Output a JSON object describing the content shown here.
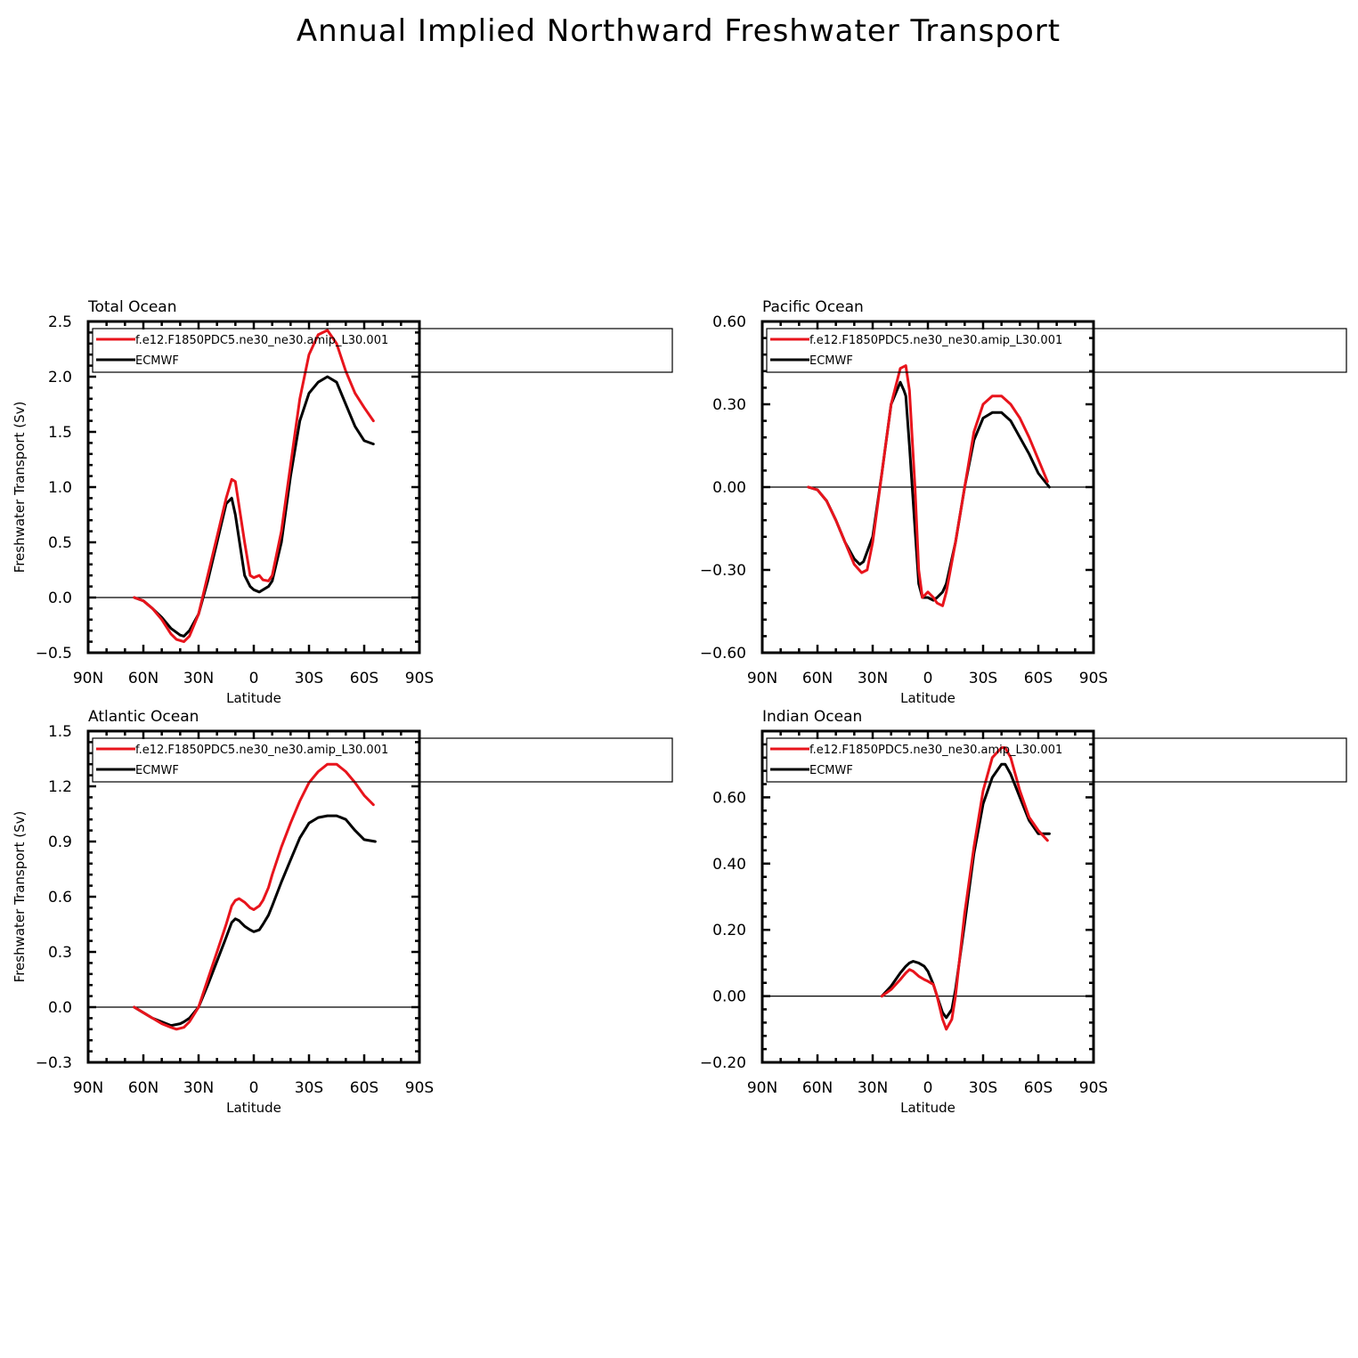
{
  "title": "Annual Implied Northward Freshwater Transport",
  "colors": {
    "model": "#e8141c",
    "obs": "#000000"
  },
  "chart_data": [
    {
      "type": "line",
      "panel_title": "Total Ocean",
      "xlabel": "Latitude",
      "ylabel": "Freshwater Transport (Sv)",
      "xlim": [
        -90,
        90
      ],
      "xticks": [
        -90,
        -60,
        -30,
        0,
        30,
        60,
        90
      ],
      "xtick_labels": [
        "90N",
        "60N",
        "30N",
        "0",
        "30S",
        "60S",
        "90S"
      ],
      "ylim": [
        -0.5,
        2.5
      ],
      "yticks": [
        -0.5,
        0,
        0.5,
        1,
        1.5,
        2,
        2.5
      ],
      "ytick_labels": [
        "−0.5",
        "0.0",
        "0.5",
        "1.0",
        "1.5",
        "2.0",
        "2.5"
      ],
      "zero_line": true,
      "series": [
        {
          "name": "f.e12.F1850PDC5.ne30_ne30.amip_L30.001",
          "color": "#e8141c",
          "x": [
            -65,
            -60,
            -55,
            -50,
            -45,
            -42,
            -38,
            -35,
            -30,
            -25,
            -20,
            -15,
            -12,
            -10,
            -5,
            -2,
            0,
            3,
            5,
            8,
            10,
            15,
            20,
            25,
            30,
            35,
            40,
            45,
            50,
            55,
            60,
            65
          ],
          "y": [
            0,
            -0.03,
            -0.1,
            -0.2,
            -0.33,
            -0.38,
            -0.4,
            -0.35,
            -0.15,
            0.2,
            0.55,
            0.9,
            1.07,
            1.05,
            0.5,
            0.2,
            0.18,
            0.2,
            0.16,
            0.15,
            0.2,
            0.6,
            1.2,
            1.8,
            2.2,
            2.38,
            2.42,
            2.3,
            2.05,
            1.85,
            1.72,
            1.6
          ]
        },
        {
          "name": "ECMWF",
          "color": "#000000",
          "x": [
            -65,
            -60,
            -55,
            -50,
            -45,
            -40,
            -38,
            -35,
            -30,
            -25,
            -20,
            -15,
            -12,
            -10,
            -5,
            -2,
            0,
            3,
            5,
            8,
            10,
            15,
            20,
            25,
            30,
            35,
            40,
            45,
            50,
            55,
            60,
            65
          ],
          "y": [
            0,
            -0.03,
            -0.1,
            -0.18,
            -0.28,
            -0.34,
            -0.35,
            -0.3,
            -0.15,
            0.15,
            0.5,
            0.85,
            0.9,
            0.75,
            0.2,
            0.1,
            0.07,
            0.05,
            0.07,
            0.1,
            0.15,
            0.5,
            1.1,
            1.6,
            1.85,
            1.95,
            2.0,
            1.95,
            1.75,
            1.55,
            1.42,
            1.39
          ]
        }
      ]
    },
    {
      "type": "line",
      "panel_title": "Pacific Ocean",
      "xlabel": "Latitude",
      "ylabel": "",
      "xlim": [
        -90,
        90
      ],
      "xticks": [
        -90,
        -60,
        -30,
        0,
        30,
        60,
        90
      ],
      "xtick_labels": [
        "90N",
        "60N",
        "30N",
        "0",
        "30S",
        "60S",
        "90S"
      ],
      "ylim": [
        -0.6,
        0.6
      ],
      "yticks": [
        -0.6,
        -0.3,
        0,
        0.3,
        0.6
      ],
      "ytick_labels": [
        "−0.60",
        "−0.30",
        "0.00",
        "0.30",
        "0.60"
      ],
      "zero_line": true,
      "series": [
        {
          "name": "f.e12.F1850PDC5.ne30_ne30.amip_L30.001",
          "color": "#e8141c",
          "x": [
            -65,
            -60,
            -55,
            -50,
            -45,
            -40,
            -36,
            -33,
            -30,
            -25,
            -20,
            -15,
            -12,
            -10,
            -7,
            -5,
            -3,
            0,
            3,
            5,
            8,
            10,
            15,
            20,
            25,
            30,
            35,
            40,
            45,
            50,
            55,
            60,
            65
          ],
          "y": [
            0,
            -0.01,
            -0.05,
            -0.12,
            -0.2,
            -0.28,
            -0.31,
            -0.3,
            -0.2,
            0.05,
            0.3,
            0.43,
            0.44,
            0.35,
            0.0,
            -0.3,
            -0.4,
            -0.38,
            -0.4,
            -0.42,
            -0.43,
            -0.38,
            -0.2,
            0.0,
            0.2,
            0.3,
            0.33,
            0.33,
            0.3,
            0.25,
            0.18,
            0.1,
            0.02
          ]
        },
        {
          "name": "ECMWF",
          "color": "#000000",
          "x": [
            -65,
            -60,
            -55,
            -50,
            -45,
            -40,
            -37,
            -35,
            -30,
            -25,
            -20,
            -15,
            -13,
            -12,
            -10,
            -7,
            -5,
            -3,
            0,
            3,
            5,
            8,
            10,
            15,
            20,
            25,
            30,
            35,
            40,
            45,
            50,
            55,
            60,
            66
          ],
          "y": [
            0,
            -0.01,
            -0.05,
            -0.12,
            -0.2,
            -0.26,
            -0.28,
            -0.27,
            -0.18,
            0.05,
            0.3,
            0.38,
            0.35,
            0.33,
            0.15,
            -0.15,
            -0.35,
            -0.4,
            -0.4,
            -0.41,
            -0.4,
            -0.38,
            -0.35,
            -0.2,
            0.0,
            0.17,
            0.25,
            0.27,
            0.27,
            0.24,
            0.18,
            0.12,
            0.05,
            0.0
          ]
        }
      ]
    },
    {
      "type": "line",
      "panel_title": "Atlantic Ocean",
      "xlabel": "Latitude",
      "ylabel": "Freshwater Transport (Sv)",
      "xlim": [
        -90,
        90
      ],
      "xticks": [
        -90,
        -60,
        -30,
        0,
        30,
        60,
        90
      ],
      "xtick_labels": [
        "90N",
        "60N",
        "30N",
        "0",
        "30S",
        "60S",
        "90S"
      ],
      "ylim": [
        -0.3,
        1.5
      ],
      "yticks": [
        -0.3,
        0,
        0.3,
        0.6,
        0.9,
        1.2,
        1.5
      ],
      "ytick_labels": [
        "−0.3",
        "0.0",
        "0.3",
        "0.6",
        "0.9",
        "1.2",
        "1.5"
      ],
      "zero_line": true,
      "series": [
        {
          "name": "f.e12.F1850PDC5.ne30_ne30.amip_L30.001",
          "color": "#e8141c",
          "x": [
            -65,
            -60,
            -55,
            -50,
            -45,
            -42,
            -38,
            -35,
            -30,
            -25,
            -20,
            -15,
            -12,
            -10,
            -8,
            -5,
            -2,
            0,
            3,
            5,
            8,
            10,
            15,
            20,
            25,
            30,
            35,
            40,
            45,
            50,
            55,
            60,
            65
          ],
          "y": [
            0,
            -0.03,
            -0.06,
            -0.09,
            -0.11,
            -0.12,
            -0.11,
            -0.08,
            0.0,
            0.15,
            0.3,
            0.45,
            0.55,
            0.58,
            0.59,
            0.57,
            0.54,
            0.53,
            0.55,
            0.58,
            0.65,
            0.72,
            0.87,
            1.0,
            1.12,
            1.22,
            1.28,
            1.32,
            1.32,
            1.28,
            1.22,
            1.15,
            1.1
          ]
        },
        {
          "name": "ECMWF",
          "color": "#000000",
          "x": [
            -65,
            -60,
            -55,
            -50,
            -45,
            -40,
            -38,
            -35,
            -30,
            -25,
            -20,
            -15,
            -12,
            -10,
            -8,
            -5,
            -2,
            0,
            3,
            5,
            8,
            10,
            15,
            20,
            25,
            30,
            35,
            40,
            45,
            50,
            55,
            60,
            66
          ],
          "y": [
            0,
            -0.03,
            -0.06,
            -0.08,
            -0.1,
            -0.09,
            -0.08,
            -0.06,
            0.0,
            0.12,
            0.25,
            0.38,
            0.46,
            0.48,
            0.47,
            0.44,
            0.42,
            0.41,
            0.42,
            0.45,
            0.5,
            0.55,
            0.68,
            0.8,
            0.92,
            1.0,
            1.03,
            1.04,
            1.04,
            1.02,
            0.96,
            0.91,
            0.9
          ]
        }
      ]
    },
    {
      "type": "line",
      "panel_title": "Indian Ocean",
      "xlabel": "Latitude",
      "ylabel": "",
      "xlim": [
        -90,
        90
      ],
      "xticks": [
        -90,
        -60,
        -30,
        0,
        30,
        60,
        90
      ],
      "xtick_labels": [
        "90N",
        "60N",
        "30N",
        "0",
        "30S",
        "60S",
        "90S"
      ],
      "ylim": [
        -0.2,
        0.8
      ],
      "yticks": [
        -0.2,
        0,
        0.2,
        0.4,
        0.6
      ],
      "ytick_labels": [
        "−0.20",
        "0.00",
        "0.20",
        "0.40",
        "0.60"
      ],
      "zero_line": true,
      "series": [
        {
          "name": "f.e12.F1850PDC5.ne30_ne30.amip_L30.001",
          "color": "#e8141c",
          "x": [
            -25,
            -20,
            -15,
            -12,
            -10,
            -8,
            -5,
            -2,
            0,
            3,
            5,
            8,
            10,
            13,
            15,
            20,
            25,
            30,
            35,
            40,
            42,
            45,
            50,
            55,
            60,
            65
          ],
          "y": [
            0,
            0.02,
            0.05,
            0.07,
            0.08,
            0.075,
            0.06,
            0.05,
            0.045,
            0.035,
            0.0,
            -0.07,
            -0.1,
            -0.07,
            0.0,
            0.25,
            0.45,
            0.62,
            0.72,
            0.75,
            0.75,
            0.72,
            0.62,
            0.54,
            0.5,
            0.47
          ]
        },
        {
          "name": "ECMWF",
          "color": "#000000",
          "x": [
            -25,
            -20,
            -15,
            -12,
            -10,
            -8,
            -5,
            -2,
            0,
            3,
            5,
            8,
            10,
            13,
            15,
            20,
            25,
            30,
            35,
            40,
            42,
            45,
            50,
            55,
            60,
            66
          ],
          "y": [
            0,
            0.03,
            0.07,
            0.09,
            0.1,
            0.105,
            0.1,
            0.09,
            0.075,
            0.035,
            0.0,
            -0.05,
            -0.065,
            -0.04,
            0.02,
            0.22,
            0.43,
            0.58,
            0.66,
            0.7,
            0.7,
            0.67,
            0.6,
            0.53,
            0.49,
            0.49
          ]
        }
      ]
    }
  ]
}
